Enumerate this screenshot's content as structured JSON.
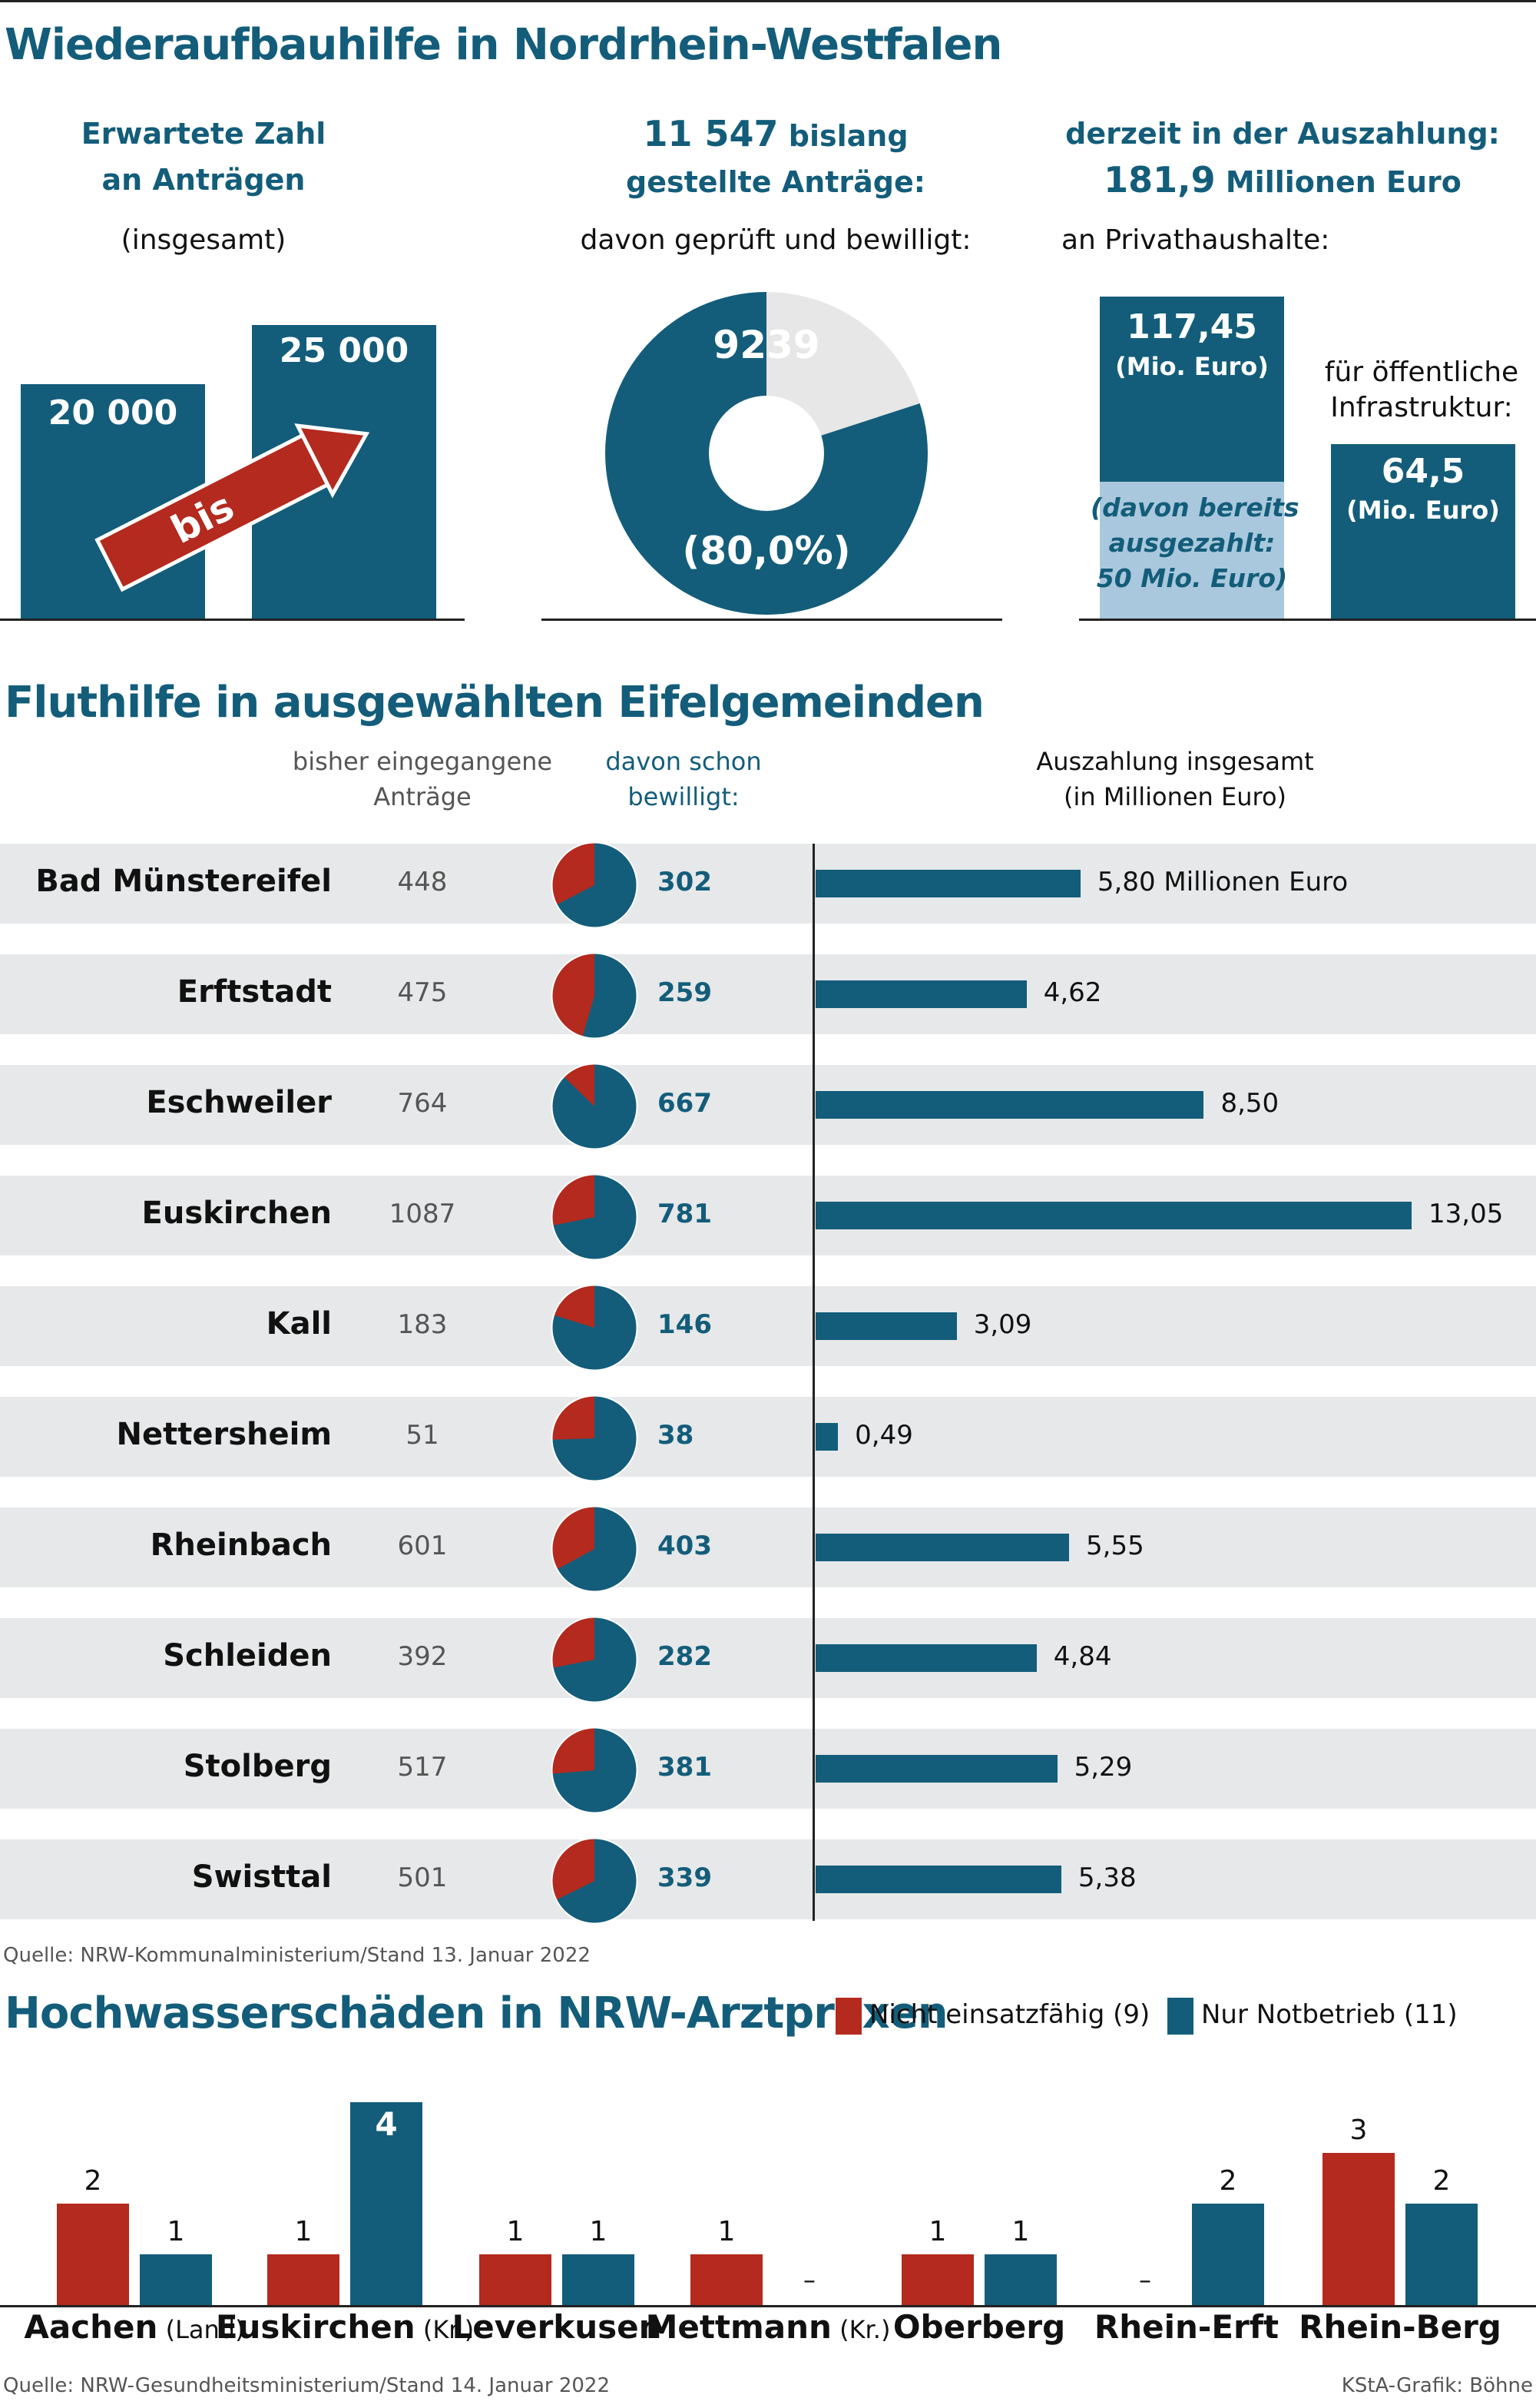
{
  "colors": {
    "teal": "#135d7a",
    "red": "#b42a1e",
    "light_blue": "#a9c8dd",
    "light_grey": "#e7e7e7",
    "row_bg": "#e6e8e9"
  },
  "section1": {
    "title": "Wiederaufbauhilfe in Nordrhein-Westfalen",
    "col1": {
      "heading_line1": "Erwartete Zahl",
      "heading_line2": "an Anträgen",
      "sub": "(insgesamt)",
      "low_label": "20 000",
      "high_label": "25 000",
      "arrow_label": "bis"
    },
    "col2": {
      "heading_num": "11 547",
      "heading_rest": " bislang",
      "heading_line2": "gestellte Anträge:",
      "sub": "davon geprüft und bewilligt:",
      "approved_label": "9239",
      "percent_label": "(80,0%)"
    },
    "col3": {
      "heading_line1": "derzeit in der Auszahlung:",
      "heading_num": "181,9",
      "heading_rest": " Millionen Euro",
      "sub": "an Privathaushalte:",
      "private_value": "117,45",
      "private_unit": "(Mio. Euro)",
      "paid_line1": "(davon bereits",
      "paid_line2": "ausgezahlt:",
      "paid_line3": "50 Mio. Euro)",
      "public_line1": "für öffentliche",
      "public_line2": "Infrastruktur:",
      "public_value": "64,5",
      "public_unit": "(Mio. Euro)"
    }
  },
  "section2": {
    "title": "Fluthilfe in ausgewählten Eifelgemeinden",
    "col_received_line1": "bisher eingegangene",
    "col_received_line2": "Anträge",
    "col_approved_line1": "davon schon",
    "col_approved_line2": "bewilligt:",
    "col_payout_line1": "Auszahlung insgesamt",
    "col_payout_line2": "(in Millionen Euro)",
    "source": "Quelle: NRW-Kommunalministerium/Stand 13. Januar 2022"
  },
  "section3": {
    "title": "Hochwasserschäden in NRW-Arztpraxen",
    "legend_red": "Nicht einsatzfähig (9)",
    "legend_teal": "Nur Notbetrieb (11)",
    "source": "Quelle: NRW-Gesundheitsministerium/Stand 14. Januar 2022",
    "credit": "KStA-Grafik: Böhne"
  },
  "chart_data": [
    {
      "type": "bar",
      "title": "Erwartete Zahl an Anträgen",
      "categories": [
        "20 000",
        "25 000"
      ],
      "values": [
        20000,
        25000
      ]
    },
    {
      "type": "pie",
      "title": "11 547 bislang gestellte Anträge",
      "total": 11547,
      "slices": [
        {
          "label": "geprüft und bewilligt",
          "value": 9239,
          "percent": 80.0
        },
        {
          "label": "",
          "value": 2308
        }
      ]
    },
    {
      "type": "bar",
      "title": "derzeit in der Auszahlung: 181,9 Millionen Euro",
      "categories": [
        "an Privathaushalte",
        "für öffentliche Infrastruktur"
      ],
      "values": [
        117.45,
        64.5
      ],
      "paid_private": 50
    },
    {
      "type": "table",
      "title": "Fluthilfe in ausgewählten Eifelgemeinden",
      "rows": [
        {
          "name": "Bad Münstereifel",
          "received": "448",
          "approved": "302",
          "payout": 5.8,
          "payout_label": "5,80 Millionen Euro"
        },
        {
          "name": "Erftstadt",
          "received": "475",
          "approved": "259",
          "payout": 4.62,
          "payout_label": "4,62"
        },
        {
          "name": "Eschweiler",
          "received": "764",
          "approved": "667",
          "payout": 8.5,
          "payout_label": "8,50"
        },
        {
          "name": "Euskirchen",
          "received": "1087",
          "approved": "781",
          "payout": 13.05,
          "payout_label": "13,05"
        },
        {
          "name": "Kall",
          "received": "183",
          "approved": "146",
          "payout": 3.09,
          "payout_label": "3,09"
        },
        {
          "name": "Nettersheim",
          "received": "51",
          "approved": "38",
          "payout": 0.49,
          "payout_label": "0,49"
        },
        {
          "name": "Rheinbach",
          "received": "601",
          "approved": "403",
          "payout": 5.55,
          "payout_label": "5,55"
        },
        {
          "name": "Schleiden",
          "received": "392",
          "approved": "282",
          "payout": 4.84,
          "payout_label": "4,84"
        },
        {
          "name": "Stolberg",
          "received": "517",
          "approved": "381",
          "payout": 5.29,
          "payout_label": "5,29"
        },
        {
          "name": "Swisttal",
          "received": "501",
          "approved": "339",
          "payout": 5.38,
          "payout_label": "5,38"
        }
      ],
      "payout_max": 13.05
    },
    {
      "type": "bar",
      "title": "Hochwasserschäden in NRW-Arztpraxen",
      "categories": [
        {
          "main": "Aachen",
          "suffix": " (Land)"
        },
        {
          "main": "Euskirchen",
          "suffix": " (Kr.)"
        },
        {
          "main": "Leverkusen",
          "suffix": ""
        },
        {
          "main": "Mettmann",
          "suffix": " (Kr.)"
        },
        {
          "main": "Oberberg",
          "suffix": ""
        },
        {
          "main": "Rhein-Erft",
          "suffix": ""
        },
        {
          "main": "Rhein-Berg",
          "suffix": ""
        }
      ],
      "series": [
        {
          "name": "Nicht einsatzfähig (9)",
          "color": "#b42a1e",
          "values": [
            2,
            1,
            1,
            1,
            1,
            0,
            3
          ]
        },
        {
          "name": "Nur Notbetrieb (11)",
          "color": "#135d7a",
          "values": [
            1,
            4,
            1,
            0,
            1,
            2,
            2
          ]
        }
      ],
      "zero_label": "–"
    }
  ]
}
